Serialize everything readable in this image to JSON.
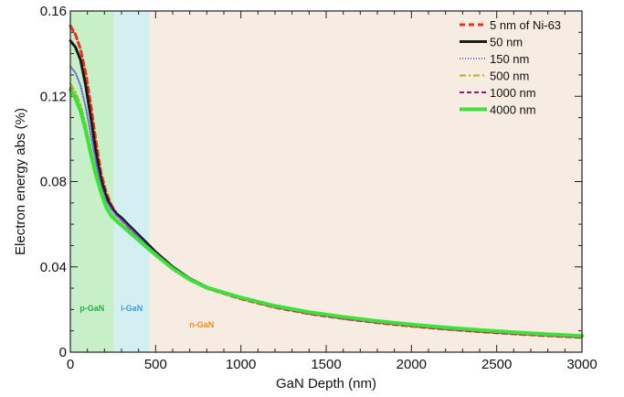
{
  "chart_data": {
    "type": "line",
    "xlabel": "GaN Depth (nm)",
    "ylabel": "Electron energy abs (%)",
    "xlim": [
      0,
      3000
    ],
    "ylim": [
      0,
      0.16
    ],
    "xticks": [
      0,
      500,
      1000,
      1500,
      2000,
      2500,
      3000
    ],
    "yticks": [
      0,
      0.04,
      0.08,
      0.12,
      0.16
    ],
    "xtick_labels": [
      "0",
      "500",
      "1000",
      "1500",
      "2000",
      "2500",
      "3000"
    ],
    "ytick_labels": [
      "0",
      "0.04",
      "0.08",
      "0.12",
      "0.16"
    ],
    "legend_position": "top-right",
    "regions": [
      {
        "label": "p-GaN",
        "x": [
          0,
          255
        ],
        "color": "#c8f0c8",
        "label_color": "#2ea84a"
      },
      {
        "label": "i-GaN",
        "x": [
          255,
          465
        ],
        "color": "#d4eff2",
        "label_color": "#3f9be0"
      },
      {
        "label": "n-GaN",
        "x": [
          465,
          3000
        ],
        "color": "#f6ece1",
        "label_color": "#f08a24"
      }
    ],
    "series": [
      {
        "name": "5 nm of Ni-63",
        "color": "#e8301c",
        "dash": "6,4",
        "width": 3,
        "x": [
          0,
          30,
          60,
          90,
          120,
          150,
          180,
          210,
          240,
          270,
          300,
          350,
          400,
          450,
          500,
          600,
          700,
          800,
          1000,
          1200,
          1400,
          1600,
          1800,
          2000,
          2200,
          2400,
          2600,
          2800,
          3000
        ],
        "y": [
          0.153,
          0.149,
          0.142,
          0.131,
          0.116,
          0.099,
          0.084,
          0.075,
          0.069,
          0.065,
          0.062,
          0.058,
          0.054,
          0.05,
          0.046,
          0.039,
          0.034,
          0.03,
          0.025,
          0.021,
          0.018,
          0.0158,
          0.0138,
          0.0122,
          0.0108,
          0.0096,
          0.0086,
          0.0077,
          0.0069
        ]
      },
      {
        "name": "50 nm",
        "color": "#1a1a1a",
        "dash": "",
        "width": 3,
        "x": [
          0,
          30,
          60,
          90,
          120,
          150,
          180,
          210,
          240,
          270,
          300,
          350,
          400,
          450,
          500,
          600,
          700,
          800,
          1000,
          1200,
          1400,
          1600,
          1800,
          2000,
          2200,
          2400,
          2600,
          2800,
          3000
        ],
        "y": [
          0.146,
          0.143,
          0.137,
          0.125,
          0.11,
          0.094,
          0.081,
          0.073,
          0.068,
          0.065,
          0.063,
          0.059,
          0.055,
          0.051,
          0.047,
          0.04,
          0.0345,
          0.0305,
          0.0255,
          0.0215,
          0.0185,
          0.0162,
          0.0142,
          0.0126,
          0.0112,
          0.01,
          0.009,
          0.0081,
          0.0073
        ]
      },
      {
        "name": "150 nm",
        "color": "#6a6ad8",
        "dash": "1,2",
        "width": 2,
        "x": [
          0,
          30,
          60,
          90,
          120,
          150,
          180,
          210,
          240,
          270,
          300,
          350,
          400,
          450,
          500,
          600,
          700,
          800,
          1000,
          1200,
          1400,
          1600,
          1800,
          2000,
          2200,
          2400,
          2600,
          2800,
          3000
        ],
        "y": [
          0.134,
          0.131,
          0.125,
          0.115,
          0.102,
          0.089,
          0.078,
          0.071,
          0.067,
          0.064,
          0.062,
          0.058,
          0.054,
          0.05,
          0.0465,
          0.0395,
          0.034,
          0.0302,
          0.0253,
          0.0213,
          0.0183,
          0.016,
          0.0141,
          0.0125,
          0.0111,
          0.0099,
          0.0089,
          0.008,
          0.0072
        ]
      },
      {
        "name": "500 nm",
        "color": "#b3b022",
        "dash": "7,3,2,3",
        "width": 2,
        "x": [
          0,
          30,
          60,
          90,
          120,
          150,
          180,
          210,
          240,
          270,
          300,
          350,
          400,
          450,
          500,
          600,
          700,
          800,
          1000,
          1200,
          1400,
          1600,
          1800,
          2000,
          2200,
          2400,
          2600,
          2800,
          3000
        ],
        "y": [
          0.126,
          0.122,
          0.116,
          0.107,
          0.096,
          0.085,
          0.076,
          0.069,
          0.065,
          0.0625,
          0.06,
          0.0565,
          0.053,
          0.0495,
          0.046,
          0.0392,
          0.0338,
          0.03,
          0.0252,
          0.0212,
          0.0182,
          0.0159,
          0.014,
          0.0124,
          0.011,
          0.0098,
          0.0088,
          0.0079,
          0.0071
        ]
      },
      {
        "name": "1000 nm",
        "color": "#8b1a7e",
        "dash": "5,3",
        "width": 2,
        "x": [
          0,
          30,
          60,
          90,
          120,
          150,
          180,
          210,
          240,
          270,
          300,
          350,
          400,
          450,
          500,
          600,
          700,
          800,
          1000,
          1200,
          1400,
          1600,
          1800,
          2000,
          2200,
          2400,
          2600,
          2800,
          3000
        ],
        "y": [
          0.124,
          0.12,
          0.114,
          0.105,
          0.094,
          0.084,
          0.0755,
          0.0685,
          0.0645,
          0.062,
          0.0598,
          0.0563,
          0.0528,
          0.0493,
          0.0458,
          0.0391,
          0.0337,
          0.0299,
          0.0251,
          0.0211,
          0.0181,
          0.0158,
          0.0139,
          0.0123,
          0.0109,
          0.0097,
          0.0087,
          0.0078,
          0.007
        ]
      },
      {
        "name": "4000 nm",
        "color": "#3ee03a",
        "dash": "",
        "width": 4,
        "x": [
          0,
          30,
          60,
          90,
          120,
          150,
          180,
          210,
          240,
          270,
          300,
          350,
          400,
          450,
          500,
          600,
          700,
          800,
          1000,
          1200,
          1400,
          1600,
          1800,
          2000,
          2200,
          2400,
          2600,
          2800,
          3000
        ],
        "y": [
          0.123,
          0.119,
          0.113,
          0.104,
          0.093,
          0.083,
          0.075,
          0.068,
          0.064,
          0.0615,
          0.0595,
          0.056,
          0.0525,
          0.049,
          0.0456,
          0.0392,
          0.034,
          0.0303,
          0.0256,
          0.0217,
          0.0188,
          0.0165,
          0.0146,
          0.013,
          0.0116,
          0.0104,
          0.0093,
          0.0084,
          0.0076
        ]
      }
    ]
  }
}
